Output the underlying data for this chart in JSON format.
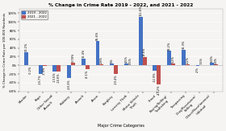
{
  "title": "% Change in Crime Rate 2019 - 2022, and 2021 - 2022",
  "xlabel": "Major Crime Categories",
  "ylabel": "% Change in Crime Rate per 100,000 Residents",
  "categories": [
    "Murder",
    "Rape",
    "Other Sexual\nAssault",
    "Robbery",
    "Assault",
    "Arson",
    "Burglary",
    "Larceny Theft",
    "Motor Vehicle\nTheft",
    "Fraud",
    "Buying/Selling/\nTrafficking",
    "Trespassing",
    "Drug/Possession/\nSelling",
    "Other/Miscellaneous/\nHabitual"
  ],
  "series_2019_2022": [
    30.2,
    -19.7,
    -13.5,
    -29.3,
    15.4,
    55.6,
    5.0,
    4.5,
    111.6,
    -12.9,
    33.2,
    36.3,
    -2.0,
    6.8
  ],
  "series_2021_2022": [
    -0.2,
    -1.4,
    -14.6,
    5.8,
    -8.1,
    2.8,
    -19.4,
    0.5,
    19.6,
    -43.2,
    5.2,
    2.2,
    1.5,
    1.8
  ],
  "labels_2019_2022": [
    "30.2%",
    "-19.7%",
    "-13.5%",
    "-29.3%",
    "15.4%",
    "55.6%",
    "5%",
    "4.5%",
    "111.6%",
    "-12.9%",
    "33.2%",
    "36.3%",
    "-2%",
    "6.8%"
  ],
  "labels_2021_2022": [
    "-0.2%",
    "-1.4%",
    "-14.6%",
    "5.78%",
    "-8.1%",
    "2.8%",
    "-19.4%",
    "0.5%",
    "19.6%",
    "-43.2%",
    "5.2%",
    "2.2%",
    "1.5%",
    "1.8%"
  ],
  "color_2019_2022": "#4472c4",
  "color_2021_2022": "#c0504d",
  "label_2019_2022": "2019 - 2022",
  "label_2021_2022": "2021 - 2022",
  "ylim": [
    -60,
    130
  ],
  "yticks": [
    -60,
    -40,
    -20,
    0,
    20,
    40,
    60,
    80,
    100,
    120
  ],
  "background_color": "#f5f4f2",
  "plot_bg_color": "#f5f4f2",
  "bar_width": 0.28
}
